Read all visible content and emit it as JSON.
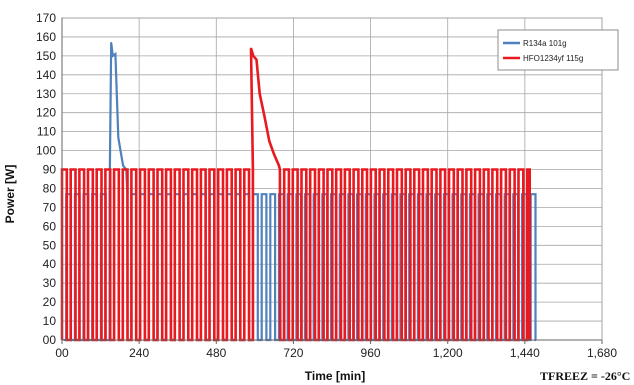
{
  "chart_data": {
    "type": "line",
    "title": "",
    "xlabel": "Time [min]",
    "ylabel": "Power [W]",
    "xlim": [
      0,
      1680
    ],
    "ylim": [
      0,
      170
    ],
    "x_ticks": [
      0,
      240,
      480,
      720,
      960,
      1200,
      1440,
      1680
    ],
    "x_tick_labels": [
      "00",
      "240",
      "480",
      "720",
      "960",
      "1,200",
      "1,440",
      "1,680"
    ],
    "y_ticks": [
      0,
      10,
      20,
      30,
      40,
      50,
      60,
      70,
      80,
      90,
      100,
      110,
      120,
      130,
      140,
      150,
      160,
      170
    ],
    "y_tick_labels": [
      "00",
      "10",
      "20",
      "30",
      "40",
      "50",
      "60",
      "70",
      "80",
      "90",
      "100",
      "110",
      "120",
      "130",
      "140",
      "150",
      "160",
      "170"
    ],
    "grid": true,
    "legend_position": "top-right",
    "annotation": "TFREEZ = -26°C",
    "series": [
      {
        "name": "R134a 101g",
        "color": "#4f81bd",
        "cycle_on_level": 77,
        "cycle_off_level": 0,
        "cycle_period_min": 27,
        "cycle_start_min": 5,
        "cycle_end_min": 1475,
        "peaks": [
          {
            "x": 153,
            "y": 157
          },
          {
            "x": 158,
            "y": 150
          },
          {
            "x": 166,
            "y": 151
          },
          {
            "x": 175,
            "y": 107
          },
          {
            "x": 182,
            "y": 100
          },
          {
            "x": 190,
            "y": 92
          },
          {
            "x": 200,
            "y": 90
          }
        ],
        "final_level": 78
      },
      {
        "name": "HFO1234yf 115g",
        "color": "#e8191f",
        "cycle_on_level": 90,
        "cycle_off_level": 0,
        "cycle_period_min": 27,
        "cycle_start_min": 0,
        "cycle_end_min": 1455,
        "peaks": [
          {
            "x": 588,
            "y": 154
          },
          {
            "x": 595,
            "y": 150
          },
          {
            "x": 605,
            "y": 148
          },
          {
            "x": 615,
            "y": 130
          },
          {
            "x": 630,
            "y": 118
          },
          {
            "x": 645,
            "y": 105
          },
          {
            "x": 660,
            "y": 98
          },
          {
            "x": 675,
            "y": 92
          }
        ],
        "final_level": 88
      }
    ]
  }
}
